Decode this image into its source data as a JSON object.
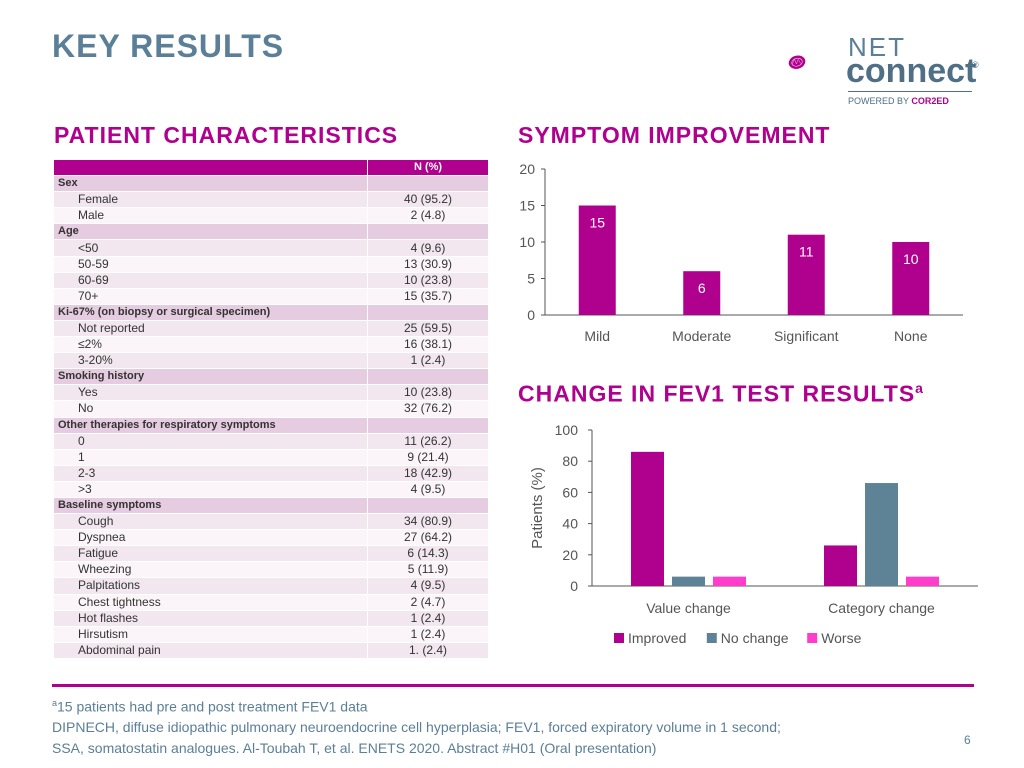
{
  "slide": {
    "title": "KEY RESULTS",
    "left_heading": "PATIENT CHARACTERISTICS",
    "right_heading_1": "SYMPTOM IMPROVEMENT",
    "right_heading_2_main": "CHANGE IN FEV1 TEST RESULTS",
    "right_heading_2_sup": "a",
    "page_number": "6"
  },
  "logo": {
    "net": "NET",
    "connect": "connect",
    "reg": "®",
    "powered": "POWERED BY",
    "brand": "COR2ED"
  },
  "table": {
    "header_value": "N (%)",
    "rows": [
      {
        "type": "cat",
        "label": "Sex",
        "value": ""
      },
      {
        "type": "item",
        "label": "Female",
        "value": "40 (95.2)"
      },
      {
        "type": "item",
        "label": "Male",
        "value": "2 (4.8)"
      },
      {
        "type": "cat",
        "label": "Age",
        "value": ""
      },
      {
        "type": "item",
        "label": "<50",
        "value": "4 (9.6)"
      },
      {
        "type": "item",
        "label": "50-59",
        "value": "13 (30.9)"
      },
      {
        "type": "item",
        "label": "60-69",
        "value": "10 (23.8)"
      },
      {
        "type": "item",
        "label": "70+",
        "value": "15 (35.7)"
      },
      {
        "type": "cat",
        "label": "Ki-67% (on biopsy or surgical specimen)",
        "value": ""
      },
      {
        "type": "item",
        "label": "Not reported",
        "value": "25 (59.5)"
      },
      {
        "type": "item",
        "label": "≤2%",
        "value": "16 (38.1)"
      },
      {
        "type": "item",
        "label": "3-20%",
        "value": "1 (2.4)"
      },
      {
        "type": "cat",
        "label": "Smoking history",
        "value": ""
      },
      {
        "type": "item",
        "label": "Yes",
        "value": "10 (23.8)"
      },
      {
        "type": "item",
        "label": "No",
        "value": "32 (76.2)"
      },
      {
        "type": "cat",
        "label": "Other therapies for respiratory symptoms",
        "value": ""
      },
      {
        "type": "item",
        "label": "0",
        "value": "11 (26.2)"
      },
      {
        "type": "item",
        "label": "1",
        "value": "9 (21.4)"
      },
      {
        "type": "item",
        "label": "2-3",
        "value": "18 (42.9)"
      },
      {
        "type": "item",
        "label": ">3",
        "value": "4 (9.5)"
      },
      {
        "type": "cat",
        "label": "Baseline symptoms",
        "value": ""
      },
      {
        "type": "item",
        "label": "Cough",
        "value": "34 (80.9)"
      },
      {
        "type": "item",
        "label": "Dyspnea",
        "value": "27 (64.2)"
      },
      {
        "type": "item",
        "label": "Fatigue",
        "value": "6 (14.3)"
      },
      {
        "type": "item",
        "label": "Wheezing",
        "value": "5 (11.9)"
      },
      {
        "type": "item",
        "label": "Palpitations",
        "value": "4 (9.5)"
      },
      {
        "type": "item",
        "label": "Chest tightness",
        "value": "2 (4.7)"
      },
      {
        "type": "item",
        "label": "Hot flashes",
        "value": "1 (2.4)"
      },
      {
        "type": "item",
        "label": "Hirsutism",
        "value": "1 (2.4)"
      },
      {
        "type": "item",
        "label": "Abdominal pain",
        "value": "1. (2.4)"
      }
    ]
  },
  "chart_data": [
    {
      "type": "bar",
      "title": "SYMPTOM IMPROVEMENT",
      "categories": [
        "Mild",
        "Moderate",
        "Significant",
        "None"
      ],
      "values": [
        15,
        6,
        11,
        10
      ],
      "ylim": [
        0,
        20
      ],
      "yticks": [
        0,
        5,
        10,
        15,
        20
      ],
      "xlabel": "",
      "ylabel": "",
      "color": "#b0008e"
    },
    {
      "type": "bar",
      "title": "CHANGE IN FEV1 TEST RESULTS",
      "categories": [
        "Value change",
        "Category change"
      ],
      "series": [
        {
          "name": "Improved",
          "values": [
            86,
            26
          ],
          "color": "#b0008e"
        },
        {
          "name": "No change",
          "values": [
            6,
            66
          ],
          "color": "#5f8396"
        },
        {
          "name": "Worse",
          "values": [
            6,
            6
          ],
          "color": "#ff3dcb"
        }
      ],
      "ylim": [
        0,
        100
      ],
      "yticks": [
        0,
        20,
        40,
        60,
        80,
        100
      ],
      "xlabel": "",
      "ylabel": "Patients (%)",
      "legend": "bottom"
    }
  ],
  "footnotes": {
    "line1_sup": "a",
    "line1": "15 patients had pre and post treatment FEV1 data",
    "line2": "DIPNECH, diffuse idiopathic pulmonary neuroendocrine cell hyperplasia; FEV1, forced expiratory volume in 1 second;",
    "line3": "SSA, somatostatin analogues. Al-Toubah T, et al. ENETS 2020. Abstract #H01 (Oral presentation)"
  }
}
